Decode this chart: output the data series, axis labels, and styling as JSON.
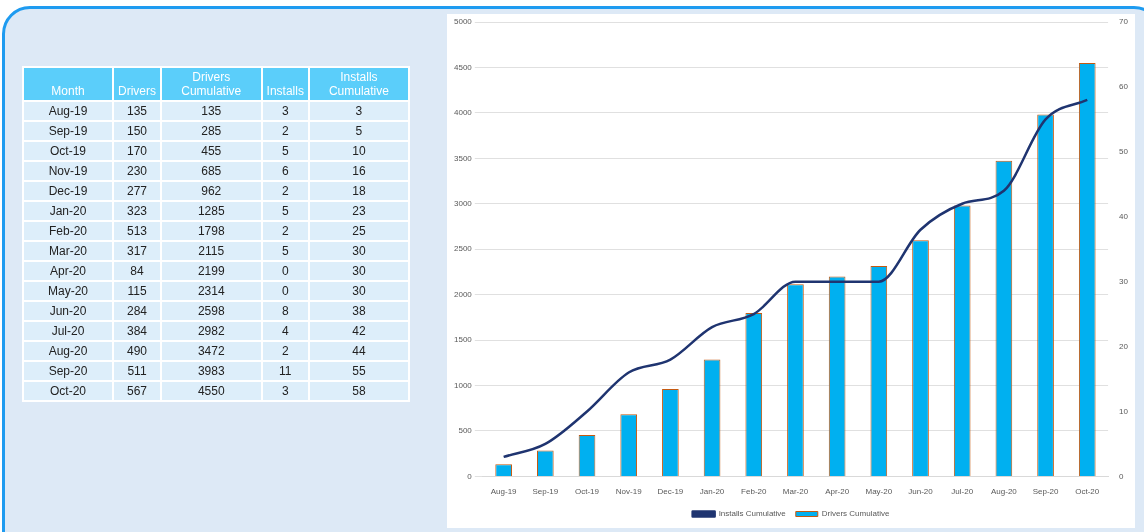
{
  "chart_data": [
    {
      "type": "other",
      "xlabel": "Month",
      "data_labels": true,
      "categories": [
        "Aug-19",
        "Sep-19",
        "Oct-19",
        "Nov-19",
        "Dec-19",
        "Jan-20",
        "Feb-20",
        "Mar-20",
        "Apr-20",
        "May-20",
        "Jun-20",
        "Jul-20",
        "Aug-20",
        "Sep-20",
        "Oct-20"
      ],
      "series": [
        {
          "name": "Drivers",
          "values": [
            135,
            150,
            170,
            230,
            277,
            323,
            513,
            317,
            84,
            115,
            284,
            384,
            490,
            511,
            567
          ]
        },
        {
          "name": "Drivers Cumulative",
          "values": [
            135,
            285,
            455,
            685,
            962,
            1285,
            1798,
            2115,
            2199,
            2314,
            2598,
            2982,
            3472,
            3983,
            4550
          ]
        },
        {
          "name": "Installs",
          "values": [
            3,
            2,
            5,
            6,
            2,
            5,
            2,
            5,
            0,
            0,
            8,
            4,
            2,
            11,
            3
          ]
        },
        {
          "name": "Installs Cumulative",
          "values": [
            3,
            5,
            10,
            16,
            18,
            23,
            25,
            30,
            30,
            30,
            38,
            42,
            44,
            55,
            58
          ]
        }
      ]
    },
    {
      "type": "bar",
      "categories": [
        "Aug-19",
        "Sep-19",
        "Oct-19",
        "Nov-19",
        "Dec-19",
        "Jan-20",
        "Feb-20",
        "Mar-20",
        "Apr-20",
        "May-20",
        "Jun-20",
        "Jul-20",
        "Aug-20",
        "Sep-20",
        "Oct-20"
      ],
      "series": [
        {
          "name": "Drivers Cumulative",
          "color": "#00b0f0",
          "values": [
            135,
            285,
            455,
            685,
            962,
            1285,
            1798,
            2115,
            2199,
            2314,
            2598,
            2982,
            3472,
            3983,
            4550
          ]
        },
        {
          "name": "Installs Cumulative",
          "type": "line",
          "axis": "y2",
          "color": "#1f3470",
          "values": [
            3,
            5,
            10,
            16,
            18,
            23,
            25,
            30,
            30,
            30,
            38,
            42,
            44,
            55,
            58
          ]
        }
      ],
      "ylim": [
        0,
        5000
      ],
      "yticks": [
        0,
        500,
        1000,
        1500,
        2000,
        2500,
        3000,
        3500,
        4000,
        4500,
        5000
      ],
      "y2lim": [
        0,
        70
      ],
      "y2ticks": [
        0,
        10,
        20,
        30,
        40,
        50,
        60,
        70
      ],
      "grid": "y",
      "legend": "bottom",
      "marker": "none"
    }
  ]
}
